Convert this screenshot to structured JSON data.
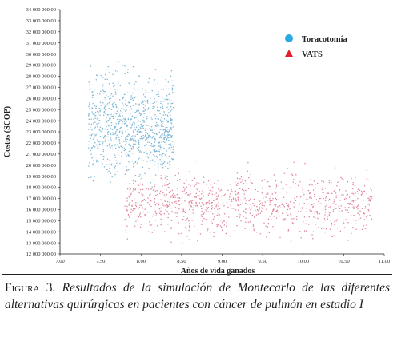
{
  "colors": {
    "toracotomia": "#7fb8d6",
    "vats": "#e0889c",
    "legend_toracotomia": "#29abe2",
    "legend_vats": "#e0202b",
    "axis": "#231f20"
  },
  "chart_data": {
    "type": "scatter",
    "xlabel": "Años de vida ganados",
    "ylabel": "Costos (SCOP)",
    "xlim": [
      7.0,
      11.0
    ],
    "ylim": [
      12000000,
      34000000
    ],
    "x_ticks": [
      "7.00",
      "7.50",
      "8.00",
      "8.50",
      "9.00",
      "9.50",
      "10.00",
      "10.50",
      "11.00"
    ],
    "y_ticks": [
      "12 000 000.00",
      "13 000 000.00",
      "14 000 000.00",
      "15 000 000.00",
      "16 000 000.00",
      "17 000 000.00",
      "18 000 000.00",
      "19 000 000.00",
      "20 000 000.00",
      "21 000 000.00",
      "22 000 000.00",
      "23 000 000.00",
      "24 000 000.00",
      "25 000 000.00",
      "26 000 000.00",
      "27 000 000.00",
      "28 000 000.00",
      "29 000 000.00",
      "30 000 000.00",
      "31 000 000.00",
      "32 000 000.00",
      "33 000 000.00",
      "34 000 000.00"
    ],
    "legend_position": "top-right",
    "grid": false,
    "series": [
      {
        "name": "Toracotomía",
        "marker": "circle",
        "n_points": 1000,
        "x_range": [
          7.35,
          8.4
        ],
        "y_range": [
          18000000,
          31000000
        ],
        "y_mean": 23500000
      },
      {
        "name": "VATS",
        "marker": "triangle",
        "n_points": 1000,
        "x_range": [
          7.8,
          10.85
        ],
        "y_range": [
          12600000,
          20500000
        ],
        "y_mean": 16500000
      }
    ]
  },
  "caption": {
    "label": "Figura 3.",
    "text": "Resultados de la simulación de Montecarlo de las diferentes alternativas quirúrgicas en pacientes con cáncer de pulmón en estadio I"
  }
}
